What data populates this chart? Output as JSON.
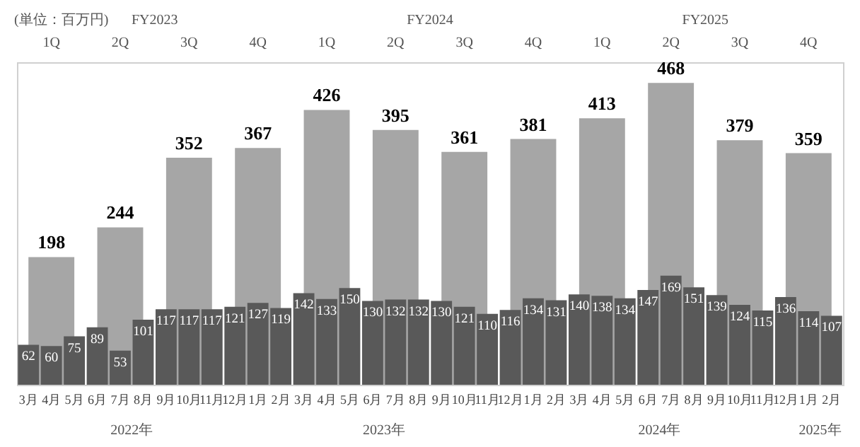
{
  "chart_data": {
    "type": "bar",
    "ylabel": "(単位：百万円)",
    "categories": [
      "3月",
      "4月",
      "5月",
      "6月",
      "7月",
      "8月",
      "9月",
      "10月",
      "11月",
      "12月",
      "1月",
      "2月",
      "3月",
      "4月",
      "5月",
      "6月",
      "7月",
      "8月",
      "9月",
      "10月",
      "11月",
      "12月",
      "1月",
      "2月",
      "3月",
      "4月",
      "5月",
      "6月",
      "7月",
      "8月",
      "9月",
      "10月",
      "11月",
      "12月",
      "1月",
      "2月"
    ],
    "series": [
      {
        "color": "#a6a6a6",
        "values": [
          null,
          198,
          null,
          null,
          244,
          null,
          null,
          352,
          null,
          null,
          367,
          null,
          null,
          426,
          null,
          null,
          395,
          null,
          null,
          361,
          null,
          null,
          381,
          null,
          null,
          413,
          null,
          null,
          468,
          null,
          null,
          379,
          null,
          null,
          359,
          null
        ]
      },
      {
        "color": "#595959",
        "values": [
          62,
          60,
          75,
          89,
          53,
          101,
          117,
          117,
          117,
          121,
          127,
          119,
          142,
          133,
          150,
          130,
          132,
          132,
          130,
          121,
          110,
          116,
          134,
          131,
          140,
          138,
          134,
          147,
          169,
          151,
          139,
          124,
          115,
          136,
          114,
          107
        ]
      }
    ],
    "annotations": [
      "FY2023",
      "FY2024",
      "FY2025",
      "1Q",
      "2Q",
      "3Q",
      "4Q",
      "1Q",
      "2Q",
      "3Q",
      "4Q",
      "1Q",
      "2Q",
      "3Q",
      "4Q",
      "2022年",
      "2023年",
      "2024年",
      "2025年"
    ],
    "data_labels": true,
    "grid": false
  }
}
